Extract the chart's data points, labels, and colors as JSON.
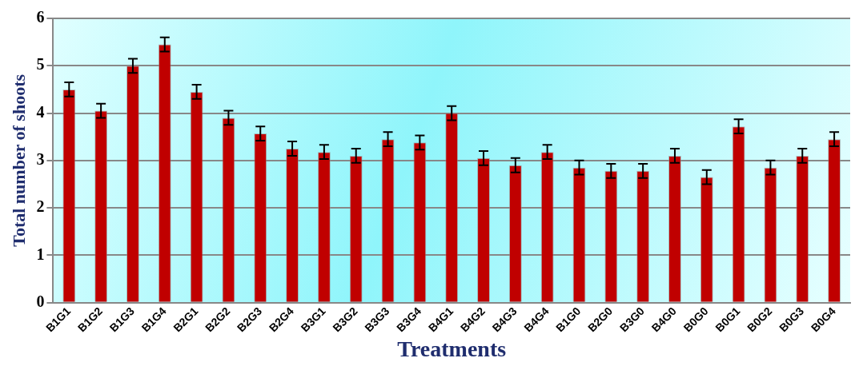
{
  "chart_data": {
    "type": "bar",
    "xlabel": "Treatments",
    "ylabel": "Total number of shoots",
    "categories": [
      "B1G1",
      "B1G2",
      "B1G3",
      "B1G4",
      "B2G1",
      "B2G2",
      "B2G3",
      "B2G4",
      "B3G1",
      "B3G2",
      "B3G3",
      "B3G4",
      "B4G1",
      "B4G2",
      "B4G3",
      "B4G4",
      "B1G0",
      "B2G0",
      "B3G0",
      "B4G0",
      "B0G0",
      "B0G1",
      "B0G2",
      "B0G3",
      "B0G4"
    ],
    "values": [
      4.5,
      4.05,
      5.0,
      5.45,
      4.45,
      3.9,
      3.57,
      3.25,
      3.18,
      3.1,
      3.45,
      3.38,
      4.0,
      3.05,
      2.9,
      3.18,
      2.85,
      2.78,
      2.78,
      3.1,
      2.65,
      3.72,
      2.85,
      3.1,
      3.45
    ],
    "errors": [
      0.15,
      0.15,
      0.15,
      0.15,
      0.15,
      0.15,
      0.15,
      0.15,
      0.15,
      0.15,
      0.15,
      0.15,
      0.15,
      0.15,
      0.15,
      0.15,
      0.15,
      0.15,
      0.15,
      0.15,
      0.15,
      0.15,
      0.15,
      0.15,
      0.15
    ],
    "color": "#c00000",
    "ylim": [
      0,
      6
    ],
    "yticks": [
      0,
      1,
      2,
      3,
      4,
      5,
      6
    ],
    "grid": "y",
    "legend": false
  }
}
